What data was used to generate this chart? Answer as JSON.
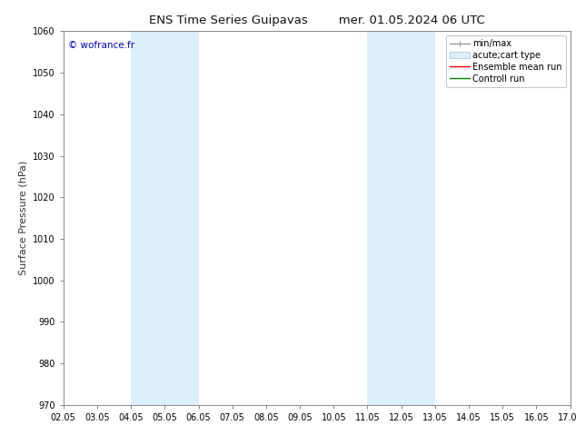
{
  "title_left": "ENS Time Series Guipavas",
  "title_right": "mer. 01.05.2024 06 UTC",
  "ylabel": "Surface Pressure (hPa)",
  "ylim": [
    970,
    1060
  ],
  "yticks": [
    970,
    980,
    990,
    1000,
    1010,
    1020,
    1030,
    1040,
    1050,
    1060
  ],
  "xtick_labels": [
    "02.05",
    "03.05",
    "04.05",
    "05.05",
    "06.05",
    "07.05",
    "08.05",
    "09.05",
    "10.05",
    "11.05",
    "12.05",
    "13.05",
    "14.05",
    "15.05",
    "16.05",
    "17.05"
  ],
  "shaded_regions": [
    {
      "start_day": 4,
      "end_day": 6,
      "color": "#ddeeff"
    },
    {
      "start_day": 11,
      "end_day": 13,
      "color": "#ddeeff"
    }
  ],
  "watermark_text": "© wofrance.fr",
  "watermark_color": "#0000bb",
  "background_color": "#ffffff",
  "grid_color": "#dddddd",
  "spine_color": "#888888",
  "title_fontsize": 9.5,
  "ylabel_fontsize": 8,
  "tick_fontsize": 7,
  "watermark_fontsize": 7.5,
  "legend_fontsize": 7
}
